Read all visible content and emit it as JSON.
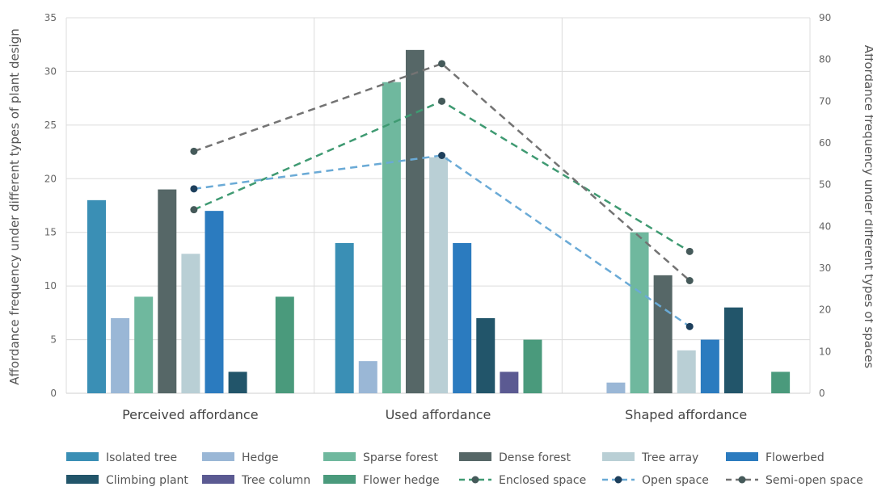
{
  "chart_data": {
    "type": "bar",
    "categories": [
      "Perceived affordance",
      "Used affordance",
      "Shaped affordance"
    ],
    "ylabel_left": "Affordance frequency under different types of plant design",
    "ylabel_right": "Affordance frequency under different types of spaces",
    "ylim_left": [
      0,
      35
    ],
    "ylim_right": [
      0,
      90
    ],
    "yticks_left": [
      "0",
      "5",
      "10",
      "15",
      "20",
      "25",
      "30",
      "35"
    ],
    "yticks_right": [
      "0",
      "10",
      "20",
      "30",
      "40",
      "50",
      "60",
      "70",
      "80",
      "90"
    ],
    "grid": true,
    "bar_series": [
      {
        "name": "Isolated tree",
        "color": "#3a8fb5",
        "values": [
          18,
          14,
          0
        ]
      },
      {
        "name": "Hedge",
        "color": "#9ab7d6",
        "values": [
          7,
          3,
          1
        ]
      },
      {
        "name": "Sparse forest",
        "color": "#6fb89e",
        "values": [
          9,
          29,
          15
        ]
      },
      {
        "name": "Dense forest",
        "color": "#566767",
        "values": [
          19,
          32,
          11
        ]
      },
      {
        "name": "Tree array",
        "color": "#b9cfd5",
        "values": [
          13,
          22,
          4
        ]
      },
      {
        "name": "Flowerbed",
        "color": "#2b7bbf",
        "values": [
          17,
          14,
          5
        ]
      },
      {
        "name": "Climbing plant",
        "color": "#22556a",
        "values": [
          2,
          7,
          8
        ]
      },
      {
        "name": "Tree column",
        "color": "#5b5a92",
        "values": [
          0,
          2,
          0
        ]
      },
      {
        "name": "Flower hedge",
        "color": "#4a9a7c",
        "values": [
          9,
          5,
          2
        ]
      }
    ],
    "line_series": [
      {
        "name": "Enclosed space",
        "color": "#3f9a72",
        "values": [
          44,
          70,
          34
        ]
      },
      {
        "name": "Open space",
        "color": "#6aaad6",
        "values": [
          49,
          57,
          16
        ]
      },
      {
        "name": "Semi-open space",
        "color": "#737373",
        "values": [
          58,
          79,
          27
        ]
      }
    ],
    "legend_position": "bottom"
  }
}
